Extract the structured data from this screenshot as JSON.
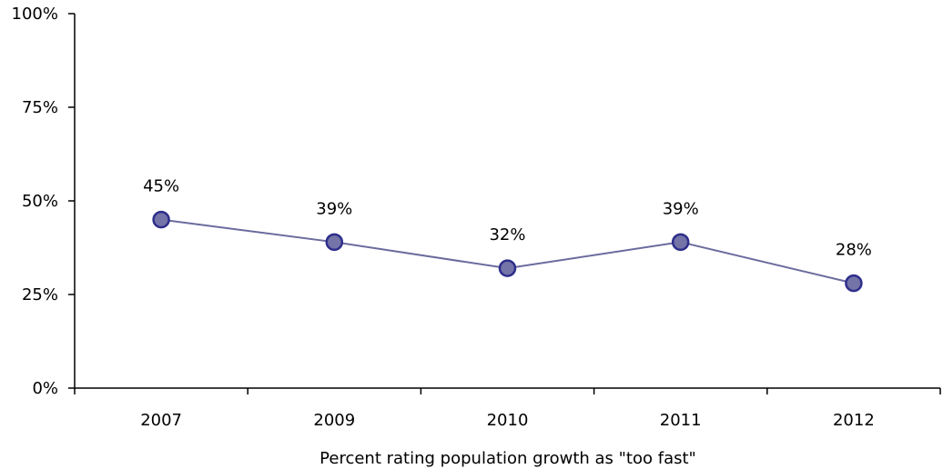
{
  "chart_data": {
    "type": "line",
    "title": "",
    "xlabel": "Percent rating population growth as \"too fast\"",
    "ylabel": "",
    "categories": [
      "2007",
      "2009",
      "2010",
      "2011",
      "2012"
    ],
    "series": [
      {
        "values": [
          45,
          39,
          32,
          39,
          28
        ],
        "data_labels": [
          "45%",
          "39%",
          "32%",
          "39%",
          "28%"
        ],
        "line_color": "#6b6b9e",
        "marker_color": "#7474a8",
        "marker_edge_color": "#2e2e8c"
      }
    ],
    "ylim": [
      0,
      100
    ],
    "yticks": [
      0,
      25,
      50,
      75,
      100
    ],
    "ytick_labels": [
      "0%",
      "25%",
      "50%",
      "75%",
      "100%"
    ],
    "grid": false,
    "legend": "none"
  }
}
